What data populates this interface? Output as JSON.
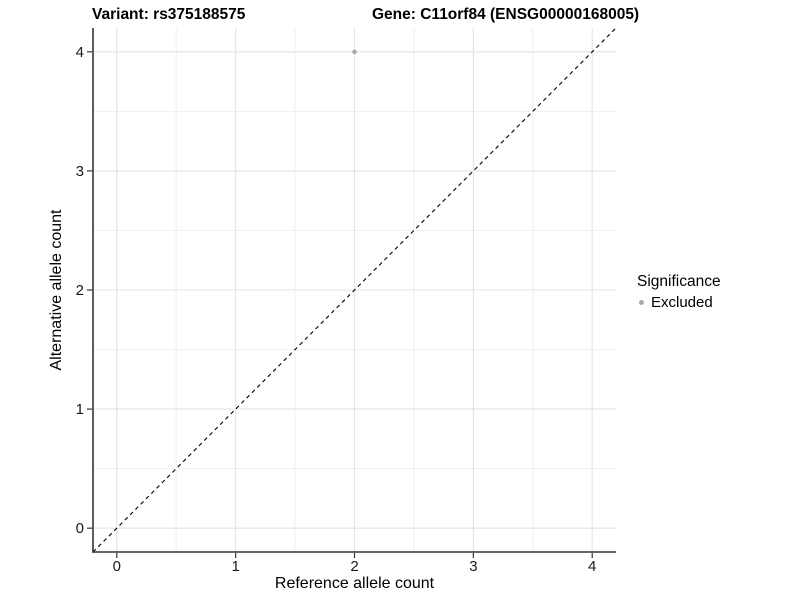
{
  "page": {
    "background": "#ffffff"
  },
  "chart_data": {
    "type": "scatter",
    "title_left": "Variant: rs375188575",
    "title_right": "Gene: C11orf84 (ENSG00000168005)",
    "xlabel": "Reference allele count",
    "ylabel": "Alternative allele count",
    "xlim": [
      -0.2,
      4.2
    ],
    "ylim": [
      -0.2,
      4.2
    ],
    "xticks": [
      0,
      1,
      2,
      3,
      4
    ],
    "yticks": [
      0,
      1,
      2,
      3,
      4
    ],
    "minor_gridlines_x": [
      0.5,
      1.5,
      2.5,
      3.5
    ],
    "minor_gridlines_y": [
      0.5,
      1.5,
      2.5,
      3.5
    ],
    "grid": "major+minor",
    "panel_border": false,
    "legend_position": "right",
    "series": [
      {
        "name": "Excluded",
        "marker": "circle",
        "color": "#a9a9a9",
        "points": [
          [
            2,
            4
          ]
        ]
      }
    ],
    "reference_line": {
      "kind": "identity y=x",
      "style": "dashed",
      "color": "#000000",
      "from": [
        -0.2,
        -0.2
      ],
      "to": [
        4.2,
        4.2
      ]
    }
  },
  "legend": {
    "title": "Significance",
    "entries": [
      {
        "label": "Excluded",
        "color": "#a9a9a9"
      }
    ]
  },
  "colors": {
    "grid_major": "#e3e3e3",
    "grid_minor": "#f0f0f0",
    "axis_line": "#333333",
    "tick_mark": "#333333",
    "tick_label": "#1a1a1a",
    "point": "#a9a9a9",
    "reference_line": "#000000"
  }
}
